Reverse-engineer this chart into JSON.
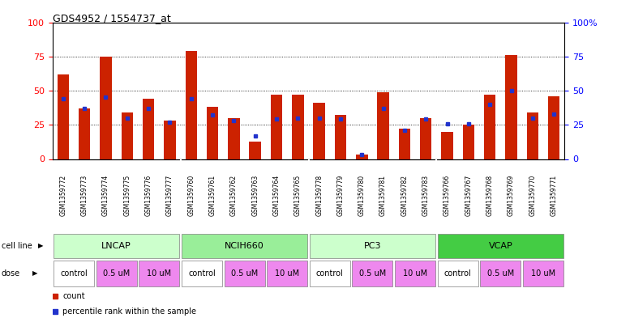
{
  "title": "GDS4952 / 1554737_at",
  "samples": [
    "GSM1359772",
    "GSM1359773",
    "GSM1359774",
    "GSM1359775",
    "GSM1359776",
    "GSM1359777",
    "GSM1359760",
    "GSM1359761",
    "GSM1359762",
    "GSM1359763",
    "GSM1359764",
    "GSM1359765",
    "GSM1359778",
    "GSM1359779",
    "GSM1359780",
    "GSM1359781",
    "GSM1359782",
    "GSM1359783",
    "GSM1359766",
    "GSM1359767",
    "GSM1359768",
    "GSM1359769",
    "GSM1359770",
    "GSM1359771"
  ],
  "red_values": [
    62,
    37,
    75,
    34,
    44,
    28,
    79,
    38,
    30,
    13,
    47,
    47,
    41,
    32,
    3,
    49,
    22,
    30,
    20,
    25,
    47,
    76,
    34,
    46
  ],
  "blue_values": [
    44,
    37,
    45,
    30,
    37,
    27,
    44,
    32,
    28,
    17,
    29,
    30,
    30,
    29,
    3,
    37,
    21,
    29,
    26,
    26,
    40,
    50,
    30,
    33
  ],
  "cell_lines": [
    {
      "label": "LNCAP",
      "start": 0,
      "end": 6,
      "color": "#ccffcc"
    },
    {
      "label": "NCIH660",
      "start": 6,
      "end": 12,
      "color": "#99ee99"
    },
    {
      "label": "PC3",
      "start": 12,
      "end": 18,
      "color": "#ccffcc"
    },
    {
      "label": "VCAP",
      "start": 18,
      "end": 24,
      "color": "#44cc44"
    }
  ],
  "dose_groups": [
    {
      "label": "control",
      "start": 0,
      "end": 2,
      "color": "#ffffff"
    },
    {
      "label": "0.5 uM",
      "start": 2,
      "end": 4,
      "color": "#ee88ee"
    },
    {
      "label": "10 uM",
      "start": 4,
      "end": 6,
      "color": "#ee88ee"
    },
    {
      "label": "control",
      "start": 6,
      "end": 8,
      "color": "#ffffff"
    },
    {
      "label": "0.5 uM",
      "start": 8,
      "end": 10,
      "color": "#ee88ee"
    },
    {
      "label": "10 uM",
      "start": 10,
      "end": 12,
      "color": "#ee88ee"
    },
    {
      "label": "control",
      "start": 12,
      "end": 14,
      "color": "#ffffff"
    },
    {
      "label": "0.5 uM",
      "start": 14,
      "end": 16,
      "color": "#ee88ee"
    },
    {
      "label": "10 uM",
      "start": 16,
      "end": 18,
      "color": "#ee88ee"
    },
    {
      "label": "control",
      "start": 18,
      "end": 20,
      "color": "#ffffff"
    },
    {
      "label": "0.5 uM",
      "start": 20,
      "end": 22,
      "color": "#ee88ee"
    },
    {
      "label": "10 uM",
      "start": 22,
      "end": 24,
      "color": "#ee88ee"
    }
  ],
  "ylim": [
    0,
    100
  ],
  "bar_color": "#cc2200",
  "blue_color": "#2233cc",
  "grid_values": [
    25,
    50,
    75
  ],
  "tick_bg": "#d8d8d8",
  "plot_bg": "#ffffff"
}
